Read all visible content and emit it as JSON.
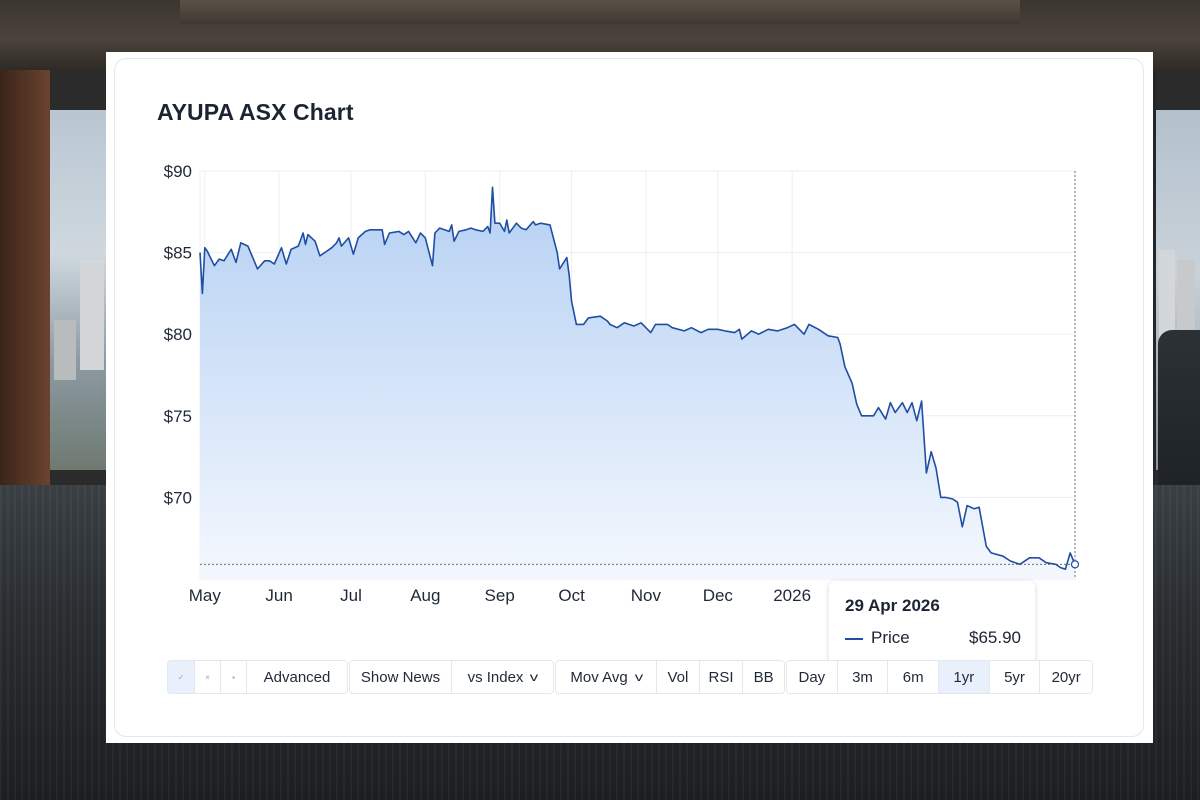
{
  "title": "AYUPA ASX Chart",
  "colors": {
    "line": "#1f4ea3",
    "fill_top": "#b5d0f3",
    "fill_bottom": "#f4f8fe",
    "grid": "#eceff3"
  },
  "chart_data": {
    "type": "area",
    "title": "AYUPA ASX Chart",
    "xlabel": "",
    "ylabel": "",
    "ylim": [
      65,
      90
    ],
    "y_ticks": [
      90,
      85,
      80,
      75,
      70
    ],
    "y_tick_labels": [
      "$90",
      "$85",
      "$80",
      "$75",
      "$70"
    ],
    "x_range": [
      "2025-04-29",
      "2026-04-29"
    ],
    "x_ticks": [
      {
        "label": "May",
        "date": "2025-05-01"
      },
      {
        "label": "Jun",
        "date": "2025-06-01"
      },
      {
        "label": "Jul",
        "date": "2025-07-01"
      },
      {
        "label": "Aug",
        "date": "2025-08-01"
      },
      {
        "label": "Sep",
        "date": "2025-09-01"
      },
      {
        "label": "Oct",
        "date": "2025-10-01"
      },
      {
        "label": "Nov",
        "date": "2025-11-01"
      },
      {
        "label": "Dec",
        "date": "2025-12-01"
      },
      {
        "label": "2026",
        "date": "2026-01-01"
      }
    ],
    "grid": true,
    "series": [
      {
        "name": "Price",
        "points": [
          [
            "2025-04-29",
            85.0
          ],
          [
            "2025-04-30",
            82.5
          ],
          [
            "2025-05-01",
            85.3
          ],
          [
            "2025-05-02",
            85.1
          ],
          [
            "2025-05-05",
            84.2
          ],
          [
            "2025-05-07",
            84.6
          ],
          [
            "2025-05-09",
            84.5
          ],
          [
            "2025-05-12",
            85.2
          ],
          [
            "2025-05-14",
            84.4
          ],
          [
            "2025-05-16",
            85.6
          ],
          [
            "2025-05-19",
            85.4
          ],
          [
            "2025-05-21",
            84.7
          ],
          [
            "2025-05-23",
            84.0
          ],
          [
            "2025-05-26",
            84.5
          ],
          [
            "2025-05-28",
            84.5
          ],
          [
            "2025-05-30",
            84.3
          ],
          [
            "2025-06-02",
            85.3
          ],
          [
            "2025-06-04",
            84.3
          ],
          [
            "2025-06-06",
            85.2
          ],
          [
            "2025-06-09",
            85.4
          ],
          [
            "2025-06-11",
            86.2
          ],
          [
            "2025-06-12",
            85.5
          ],
          [
            "2025-06-13",
            86.1
          ],
          [
            "2025-06-16",
            85.7
          ],
          [
            "2025-06-18",
            84.8
          ],
          [
            "2025-06-20",
            85.0
          ],
          [
            "2025-06-23",
            85.3
          ],
          [
            "2025-06-25",
            85.6
          ],
          [
            "2025-06-26",
            85.9
          ],
          [
            "2025-06-27",
            85.4
          ],
          [
            "2025-06-30",
            85.9
          ],
          [
            "2025-07-02",
            84.9
          ],
          [
            "2025-07-04",
            85.9
          ],
          [
            "2025-07-07",
            86.3
          ],
          [
            "2025-07-09",
            86.4
          ],
          [
            "2025-07-11",
            86.4
          ],
          [
            "2025-07-14",
            86.4
          ],
          [
            "2025-07-15",
            85.5
          ],
          [
            "2025-07-17",
            86.2
          ],
          [
            "2025-07-21",
            86.3
          ],
          [
            "2025-07-23",
            86.1
          ],
          [
            "2025-07-25",
            86.3
          ],
          [
            "2025-07-28",
            85.6
          ],
          [
            "2025-07-30",
            86.2
          ],
          [
            "2025-08-01",
            85.9
          ],
          [
            "2025-08-04",
            84.2
          ],
          [
            "2025-08-05",
            86.2
          ],
          [
            "2025-08-07",
            86.5
          ],
          [
            "2025-08-11",
            86.3
          ],
          [
            "2025-08-12",
            86.7
          ],
          [
            "2025-08-13",
            85.7
          ],
          [
            "2025-08-15",
            86.3
          ],
          [
            "2025-08-18",
            86.4
          ],
          [
            "2025-08-20",
            86.5
          ],
          [
            "2025-08-22",
            86.4
          ],
          [
            "2025-08-25",
            86.3
          ],
          [
            "2025-08-27",
            86.6
          ],
          [
            "2025-08-28",
            86.2
          ],
          [
            "2025-08-29",
            89.0
          ],
          [
            "2025-08-30",
            86.8
          ],
          [
            "2025-09-01",
            86.8
          ],
          [
            "2025-09-03",
            86.3
          ],
          [
            "2025-09-04",
            87.0
          ],
          [
            "2025-09-05",
            86.2
          ],
          [
            "2025-09-08",
            86.8
          ],
          [
            "2025-09-10",
            86.5
          ],
          [
            "2025-09-12",
            86.4
          ],
          [
            "2025-09-15",
            86.9
          ],
          [
            "2025-09-16",
            86.7
          ],
          [
            "2025-09-18",
            86.8
          ],
          [
            "2025-09-22",
            86.7
          ],
          [
            "2025-09-25",
            85.0
          ],
          [
            "2025-09-26",
            84.0
          ],
          [
            "2025-09-29",
            84.7
          ],
          [
            "2025-09-30",
            83.6
          ],
          [
            "2025-10-01",
            82.0
          ],
          [
            "2025-10-03",
            80.6
          ],
          [
            "2025-10-06",
            80.6
          ],
          [
            "2025-10-08",
            81.0
          ],
          [
            "2025-10-13",
            81.1
          ],
          [
            "2025-10-16",
            80.8
          ],
          [
            "2025-10-17",
            80.6
          ],
          [
            "2025-10-20",
            80.4
          ],
          [
            "2025-10-23",
            80.7
          ],
          [
            "2025-10-27",
            80.5
          ],
          [
            "2025-10-30",
            80.7
          ],
          [
            "2025-11-03",
            80.1
          ],
          [
            "2025-11-05",
            80.6
          ],
          [
            "2025-11-10",
            80.6
          ],
          [
            "2025-11-12",
            80.4
          ],
          [
            "2025-11-17",
            80.2
          ],
          [
            "2025-11-20",
            80.4
          ],
          [
            "2025-11-24",
            80.1
          ],
          [
            "2025-11-27",
            80.3
          ],
          [
            "2025-12-01",
            80.3
          ],
          [
            "2025-12-04",
            80.2
          ],
          [
            "2025-12-08",
            80.1
          ],
          [
            "2025-12-10",
            80.3
          ],
          [
            "2025-12-11",
            79.7
          ],
          [
            "2025-12-15",
            80.2
          ],
          [
            "2025-12-18",
            80.0
          ],
          [
            "2025-12-22",
            80.3
          ],
          [
            "2025-12-26",
            80.2
          ],
          [
            "2025-12-30",
            80.4
          ],
          [
            "2026-01-02",
            80.6
          ],
          [
            "2026-01-06",
            80.0
          ],
          [
            "2026-01-08",
            80.6
          ],
          [
            "2026-01-12",
            80.3
          ],
          [
            "2026-01-16",
            79.9
          ],
          [
            "2026-01-20",
            79.8
          ],
          [
            "2026-01-21",
            79.4
          ],
          [
            "2026-01-23",
            78.0
          ],
          [
            "2026-01-26",
            77.0
          ],
          [
            "2026-01-28",
            75.7
          ],
          [
            "2026-01-30",
            75.0
          ],
          [
            "2026-02-04",
            75.0
          ],
          [
            "2026-02-06",
            75.5
          ],
          [
            "2026-02-09",
            74.8
          ],
          [
            "2026-02-11",
            75.8
          ],
          [
            "2026-02-13",
            75.2
          ],
          [
            "2026-02-16",
            75.8
          ],
          [
            "2026-02-18",
            75.2
          ],
          [
            "2026-02-20",
            75.8
          ],
          [
            "2026-02-22",
            74.7
          ],
          [
            "2026-02-24",
            75.9
          ],
          [
            "2026-02-26",
            71.5
          ],
          [
            "2026-02-28",
            72.8
          ],
          [
            "2026-03-02",
            71.8
          ],
          [
            "2026-03-04",
            70.0
          ],
          [
            "2026-03-06",
            70.0
          ],
          [
            "2026-03-09",
            69.9
          ],
          [
            "2026-03-11",
            69.7
          ],
          [
            "2026-03-13",
            68.2
          ],
          [
            "2026-03-15",
            69.5
          ],
          [
            "2026-03-18",
            69.3
          ],
          [
            "2026-03-20",
            69.4
          ],
          [
            "2026-03-23",
            67.0
          ],
          [
            "2026-03-25",
            66.6
          ],
          [
            "2026-03-30",
            66.4
          ],
          [
            "2026-04-02",
            66.1
          ],
          [
            "2026-04-06",
            65.9
          ],
          [
            "2026-04-10",
            66.3
          ],
          [
            "2026-04-14",
            66.3
          ],
          [
            "2026-04-17",
            66.0
          ],
          [
            "2026-04-21",
            65.9
          ],
          [
            "2026-04-23",
            65.7
          ],
          [
            "2026-04-25",
            65.6
          ],
          [
            "2026-04-27",
            66.6
          ],
          [
            "2026-04-29",
            65.9
          ]
        ]
      }
    ],
    "crosshair": {
      "date": "2026-04-29",
      "value": 65.9
    }
  },
  "tooltip": {
    "date": "29 Apr 2026",
    "series_label": "Price",
    "value": "$65.90"
  },
  "toolbar": {
    "tool_icons": [
      "chart-type-line-icon",
      "chart-type-close-icon",
      "chart-type-bar-icon"
    ],
    "tool_glyphs": [
      "✓",
      "×",
      "▪"
    ],
    "advanced": "Advanced",
    "show_news": "Show News",
    "vs_index": "vs Index",
    "mov_avg": "Mov Avg",
    "vol": "Vol",
    "rsi": "RSI",
    "bb": "BB",
    "ranges": [
      "Day",
      "3m",
      "6m",
      "1yr",
      "5yr",
      "20yr"
    ],
    "active_range": "1yr"
  }
}
